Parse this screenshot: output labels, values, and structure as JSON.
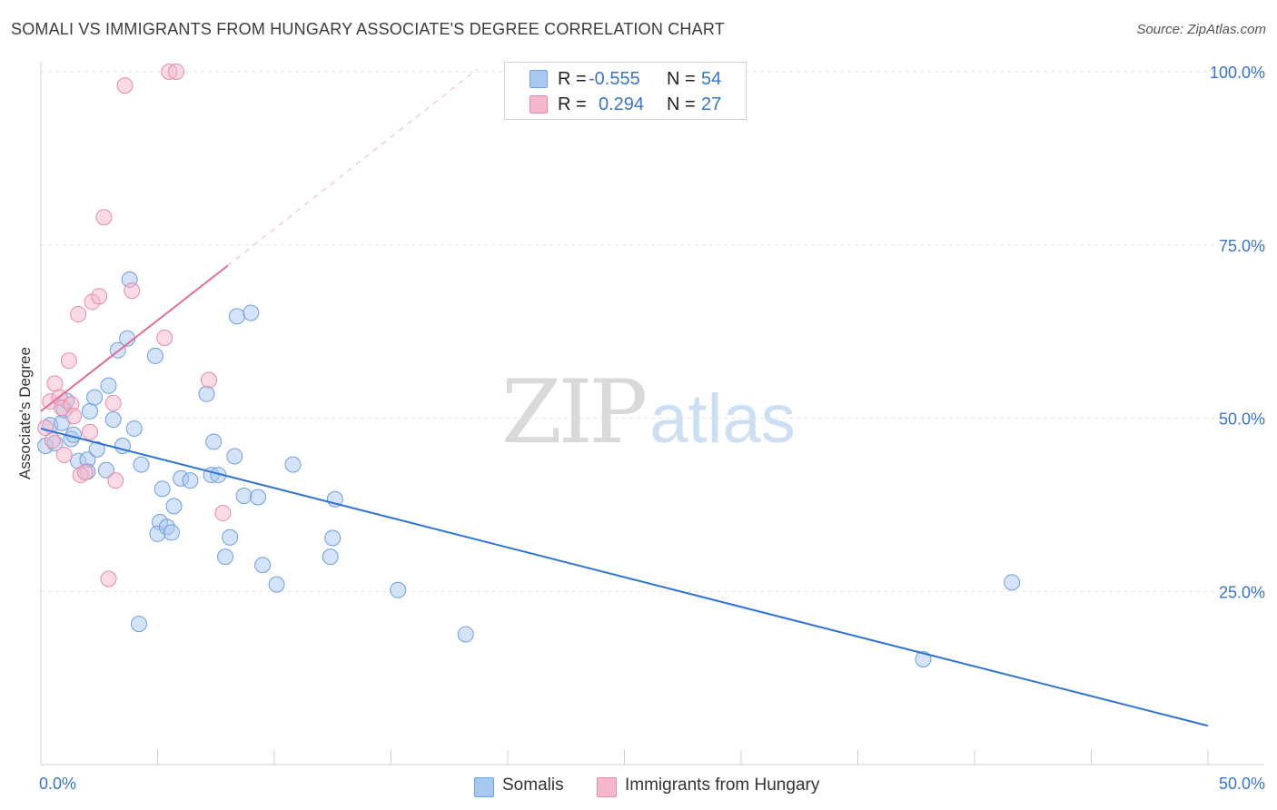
{
  "title": "SOMALI VS IMMIGRANTS FROM HUNGARY ASSOCIATE'S DEGREE CORRELATION CHART",
  "source": "Source: ZipAtlas.com",
  "watermark": {
    "zip": "ZIP",
    "atlas": "atlas"
  },
  "stats": [
    {
      "r_label": "R =",
      "r_value": "-0.555",
      "n_label": "N =",
      "n_value": "54",
      "color": "#a9c8f0"
    },
    {
      "r_label": "R =",
      "r_value": "0.294",
      "n_label": "N =",
      "n_value": "27",
      "color": "#f5b8cb"
    }
  ],
  "legend": [
    {
      "label": "Somalis",
      "color": "#a9c8f0"
    },
    {
      "label": "Immigrants from Hungary",
      "color": "#f5b8cb"
    }
  ],
  "chart_data": {
    "type": "scatter",
    "title": "SOMALI VS IMMIGRANTS FROM HUNGARY ASSOCIATE'S DEGREE CORRELATION CHART",
    "xlabel": "",
    "ylabel": "Associate's Degree",
    "xlim": [
      0,
      50
    ],
    "ylim": [
      0,
      102
    ],
    "x_tick_labels": {
      "min": "0.0%",
      "max": "50.0%"
    },
    "y_ticks": [
      {
        "value": 25,
        "label": "25.0%"
      },
      {
        "value": 50,
        "label": "50.0%"
      },
      {
        "value": 75,
        "label": "75.0%"
      },
      {
        "value": 100,
        "label": "100.0%"
      }
    ],
    "grid": true,
    "series": [
      {
        "name": "Somalis",
        "color": "#a9c8f0",
        "stroke": "#6f9fdc",
        "trend_color": "#2f74d0",
        "trend": {
          "x0": 0,
          "y0": 48.5,
          "x1": 50,
          "y1": 5.6
        },
        "points": [
          [
            0.2,
            46.0
          ],
          [
            0.4,
            49.0
          ],
          [
            0.6,
            46.4
          ],
          [
            0.9,
            49.3
          ],
          [
            1.0,
            51.2
          ],
          [
            1.1,
            52.5
          ],
          [
            1.3,
            47.0
          ],
          [
            1.4,
            47.6
          ],
          [
            1.6,
            43.8
          ],
          [
            2.0,
            44.0
          ],
          [
            2.1,
            51.0
          ],
          [
            2.3,
            53.0
          ],
          [
            2.4,
            45.5
          ],
          [
            2.8,
            42.5
          ],
          [
            2.9,
            54.7
          ],
          [
            3.1,
            49.8
          ],
          [
            3.3,
            59.8
          ],
          [
            3.5,
            46.0
          ],
          [
            3.7,
            61.5
          ],
          [
            3.8,
            70.0
          ],
          [
            4.0,
            48.5
          ],
          [
            4.3,
            43.3
          ],
          [
            4.9,
            59.0
          ],
          [
            5.1,
            35.0
          ],
          [
            5.0,
            33.3
          ],
          [
            5.2,
            39.8
          ],
          [
            5.4,
            34.3
          ],
          [
            5.6,
            33.5
          ],
          [
            5.7,
            37.3
          ],
          [
            6.0,
            41.3
          ],
          [
            6.4,
            41.0
          ],
          [
            7.1,
            53.5
          ],
          [
            7.3,
            41.8
          ],
          [
            7.4,
            46.6
          ],
          [
            7.6,
            41.8
          ],
          [
            7.9,
            30.0
          ],
          [
            8.1,
            32.8
          ],
          [
            8.3,
            44.5
          ],
          [
            8.4,
            64.7
          ],
          [
            8.7,
            38.8
          ],
          [
            9.0,
            65.2
          ],
          [
            9.3,
            38.6
          ],
          [
            9.5,
            28.8
          ],
          [
            10.1,
            26.0
          ],
          [
            10.8,
            43.3
          ],
          [
            12.4,
            30.0
          ],
          [
            12.5,
            32.7
          ],
          [
            12.6,
            38.3
          ],
          [
            15.3,
            25.2
          ],
          [
            18.2,
            18.8
          ],
          [
            2.0,
            42.3
          ],
          [
            4.2,
            20.3
          ],
          [
            37.8,
            15.2
          ],
          [
            41.6,
            26.3
          ]
        ]
      },
      {
        "name": "Immigrants from Hungary",
        "color": "#f5b8cb",
        "stroke": "#e68aa8",
        "trend_color": "#e06c98",
        "trend": {
          "x0": 0,
          "y0": 51.0,
          "x1": 8.0,
          "y1": 72.0
        },
        "trend_ext": {
          "x0": 8.0,
          "y0": 72.0,
          "x1": 18.7,
          "y1": 100.4
        },
        "points": [
          [
            0.2,
            48.6
          ],
          [
            0.4,
            52.4
          ],
          [
            0.6,
            55.0
          ],
          [
            0.8,
            53.0
          ],
          [
            0.9,
            51.5
          ],
          [
            1.0,
            44.7
          ],
          [
            1.2,
            58.3
          ],
          [
            1.3,
            52.0
          ],
          [
            1.4,
            50.3
          ],
          [
            1.6,
            65.0
          ],
          [
            1.7,
            41.8
          ],
          [
            1.9,
            42.2
          ],
          [
            2.1,
            48.0
          ],
          [
            2.2,
            66.8
          ],
          [
            2.5,
            67.6
          ],
          [
            2.7,
            79.0
          ],
          [
            2.9,
            26.8
          ],
          [
            3.1,
            52.2
          ],
          [
            3.2,
            41.0
          ],
          [
            3.6,
            98.0
          ],
          [
            3.9,
            68.4
          ],
          [
            5.3,
            61.6
          ],
          [
            5.5,
            100.0
          ],
          [
            5.8,
            100.0
          ],
          [
            7.2,
            55.5
          ],
          [
            7.8,
            36.3
          ],
          [
            0.5,
            46.8
          ]
        ]
      }
    ]
  }
}
